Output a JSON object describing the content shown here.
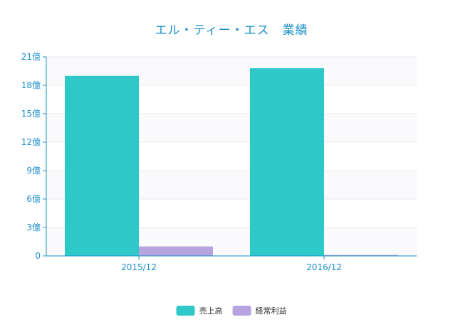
{
  "chart_data": {
    "type": "bar",
    "title": "エル・ティー・エス　業績",
    "categories": [
      "2015/12",
      "2016/12"
    ],
    "series": [
      {
        "name": "売上高",
        "values": [
          19.0,
          19.8
        ],
        "color": "#2ec8c9"
      },
      {
        "name": "経常利益",
        "values": [
          1.0,
          0.1
        ],
        "color": "#b6a4e0"
      }
    ],
    "ylim": [
      0,
      21
    ],
    "yticks": [
      {
        "value": 0,
        "label": "0"
      },
      {
        "value": 3,
        "label": "3億"
      },
      {
        "value": 6,
        "label": "6億"
      },
      {
        "value": 9,
        "label": "9億"
      },
      {
        "value": 12,
        "label": "12億"
      },
      {
        "value": 15,
        "label": "15億"
      },
      {
        "value": 18,
        "label": "18億"
      },
      {
        "value": 21,
        "label": "21億"
      }
    ],
    "grid": true,
    "legend_position": "bottom-center",
    "axis_color": "#1a8fc9"
  }
}
